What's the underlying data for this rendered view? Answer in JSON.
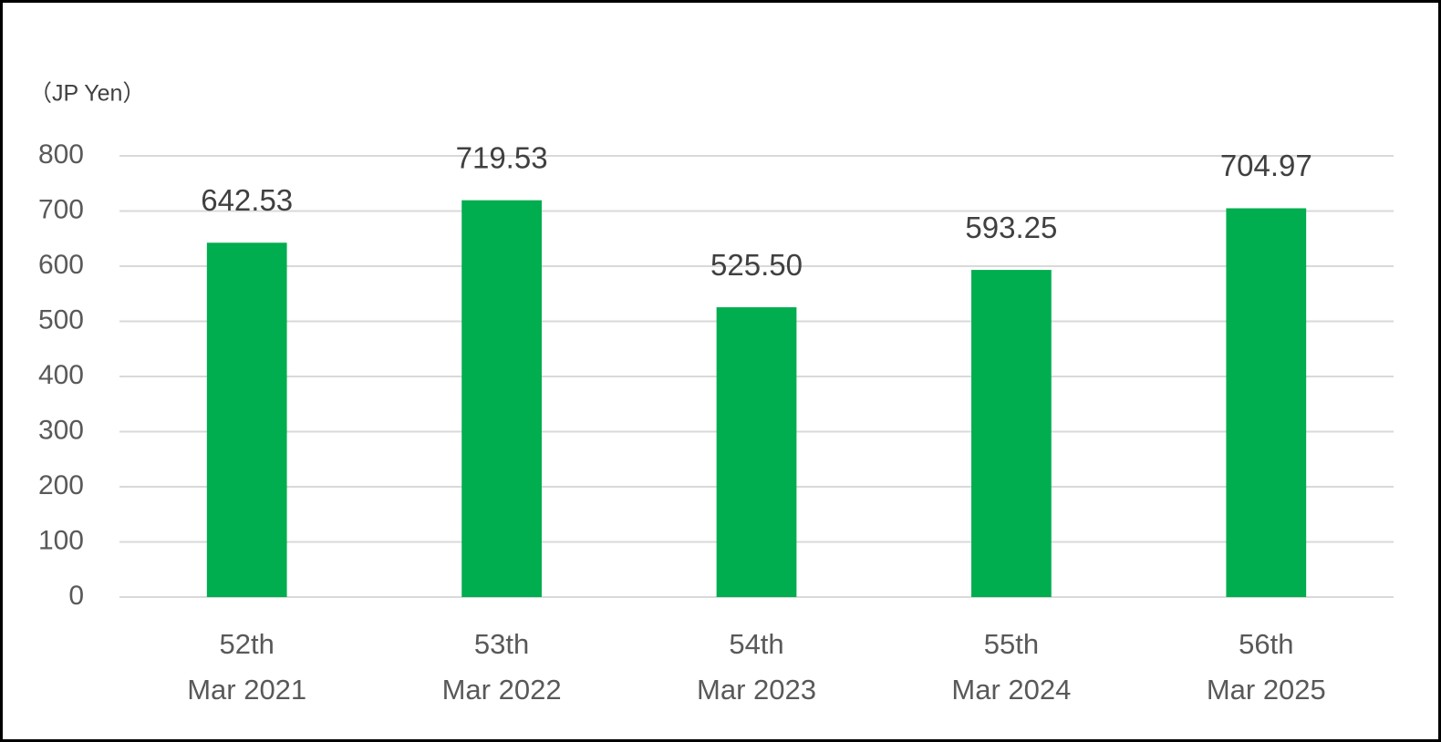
{
  "chart_data": {
    "type": "bar",
    "y_label": "（JP Yen）",
    "categories": [
      [
        "52th",
        "Mar 2021"
      ],
      [
        "53th",
        "Mar 2022"
      ],
      [
        "54th",
        "Mar 2023"
      ],
      [
        "55th",
        "Mar 2024"
      ],
      [
        "56th",
        "Mar 2025"
      ]
    ],
    "values": [
      642.53,
      719.53,
      525.5,
      593.25,
      704.97
    ],
    "value_labels": [
      "642.53",
      "719.53",
      "525.50",
      "593.25",
      "704.97"
    ],
    "color": "#00ad4f",
    "ylim": [
      0,
      800
    ],
    "yticks": [
      0,
      100,
      200,
      300,
      400,
      500,
      600,
      700,
      800
    ],
    "grid": true
  }
}
